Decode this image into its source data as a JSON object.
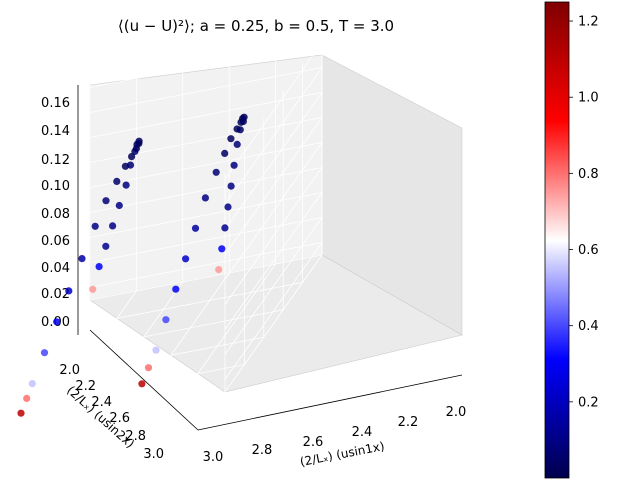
{
  "chart_data": {
    "type": "scatter",
    "projection": "3d",
    "title": "⟨(u − U)²⟩; a = 0.25, b = 0.5, T = 3.0",
    "xlabel": "(2/Lₓ) (usin1x)",
    "ylabel": "(2/Lₓ) (usin2x)",
    "zlabel": "",
    "xlim": [
      2.0,
      3.0
    ],
    "ylim": [
      2.0,
      3.0
    ],
    "zlim": [
      -0.01,
      0.165
    ],
    "x_ticks": [
      "2.0",
      "2.2",
      "2.4",
      "2.6",
      "2.8",
      "3.0"
    ],
    "y_ticks": [
      "2.0",
      "2.2",
      "2.4",
      "2.6",
      "2.8",
      "3.0"
    ],
    "z_ticks": [
      "0.00",
      "0.02",
      "0.04",
      "0.06",
      "0.08",
      "0.10",
      "0.12",
      "0.14",
      "0.16"
    ],
    "grid": true,
    "colorbar": {
      "colormap": "seismic",
      "range": [
        0.0,
        1.25
      ],
      "ticks": [
        "0.2",
        "0.4",
        "0.6",
        "0.8",
        "1.0",
        "1.2"
      ]
    },
    "series": [
      {
        "x": [
          2.95,
          2.94,
          2.93,
          2.9,
          2.87,
          2.84,
          2.8,
          2.76,
          2.72,
          2.68,
          2.64,
          2.6,
          2.55,
          2.5,
          2.45,
          2.4,
          2.35,
          2.3,
          2.25,
          2.2,
          2.15,
          2.1,
          2.05,
          2.02
        ],
        "y": [
          2.9,
          2.88,
          2.86,
          2.82,
          2.78,
          2.74,
          2.7,
          2.66,
          2.63,
          2.6,
          2.58,
          2.57,
          2.57,
          2.58,
          2.6,
          2.63,
          2.66,
          2.7,
          2.74,
          2.79,
          2.84,
          2.89,
          2.94,
          2.98
        ],
        "z": [
          0.0,
          0.01,
          0.02,
          0.04,
          0.06,
          0.08,
          0.1,
          0.12,
          0.135,
          0.145,
          0.152,
          0.155,
          0.156,
          0.155,
          0.152,
          0.145,
          0.135,
          0.12,
          0.1,
          0.08,
          0.06,
          0.04,
          0.02,
          0.0
        ],
        "c": [
          1.1,
          0.8,
          0.55,
          0.4,
          0.3,
          0.22,
          0.15,
          0.1,
          0.07,
          0.05,
          0.03,
          0.02,
          0.02,
          0.02,
          0.03,
          0.04,
          0.05,
          0.07,
          0.09,
          0.1,
          0.1,
          0.12,
          0.3,
          0.75
        ]
      },
      {
        "x": [
          2.9,
          2.88,
          2.85,
          2.82,
          2.79,
          2.76,
          2.73,
          2.7,
          2.66,
          2.62,
          2.58,
          2.54,
          2.5,
          2.46,
          2.42,
          2.38,
          2.34,
          2.3,
          2.26,
          2.22,
          2.18,
          2.14,
          2.1,
          2.06
        ],
        "y": [
          2.4,
          2.38,
          2.36,
          2.33,
          2.3,
          2.27,
          2.24,
          2.21,
          2.18,
          2.16,
          2.15,
          2.14,
          2.14,
          2.15,
          2.16,
          2.18,
          2.21,
          2.24,
          2.27,
          2.3,
          2.33,
          2.36,
          2.39,
          2.42
        ],
        "z": [
          0.0,
          0.01,
          0.02,
          0.04,
          0.06,
          0.08,
          0.1,
          0.12,
          0.135,
          0.145,
          0.152,
          0.155,
          0.156,
          0.155,
          0.152,
          0.145,
          0.135,
          0.12,
          0.1,
          0.08,
          0.06,
          0.04,
          0.02,
          0.0
        ],
        "c": [
          1.1,
          0.8,
          0.55,
          0.4,
          0.3,
          0.22,
          0.15,
          0.1,
          0.07,
          0.05,
          0.03,
          0.02,
          0.02,
          0.02,
          0.03,
          0.04,
          0.05,
          0.07,
          0.09,
          0.1,
          0.1,
          0.12,
          0.3,
          0.75
        ]
      }
    ]
  }
}
